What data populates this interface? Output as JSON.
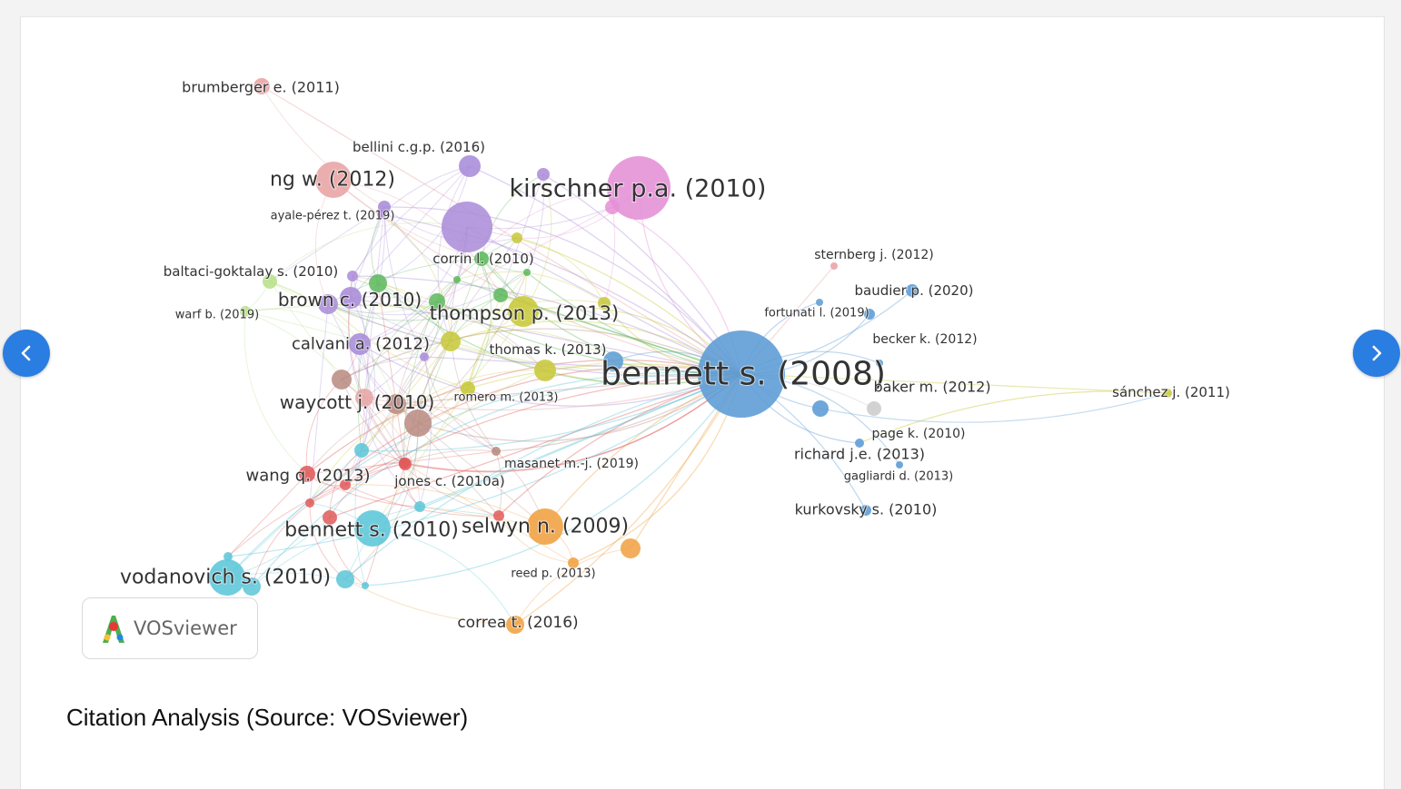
{
  "caption": "Citation Analysis (Source: VOSviewer)",
  "badge": {
    "brand": "VOSviewer",
    "icon": "vosviewer-logo-icon"
  },
  "navigation": {
    "prev_icon": "chevron-left-icon",
    "next_icon": "chevron-right-icon",
    "accent": "#2a7de1"
  },
  "network": {
    "cluster_colors": {
      "red": "#e05a5a",
      "green": "#5cb85c",
      "blue": "#5b9bd5",
      "yellow": "#c8c83a",
      "purple": "#a98bd8",
      "cyan": "#5bc6d8",
      "orange": "#f0a040",
      "pink": "#e58fd6",
      "salmon": "#e8a3a3",
      "brown": "#b98a80",
      "lightgray": "#cccccc",
      "lightgreen": "#b7e08a"
    },
    "items": [
      {
        "id": "bennett2008",
        "label": "bennett s. (2008)",
        "cluster": "blue"
      },
      {
        "id": "kirschner",
        "label": "kirschner p.a. (2010)",
        "cluster": "pink"
      },
      {
        "id": "ng",
        "label": "ng w. (2012)",
        "cluster": "salmon"
      },
      {
        "id": "brumberger",
        "label": "brumberger e. (2011)",
        "cluster": "salmon"
      },
      {
        "id": "bellini",
        "label": "bellini c.g.p. (2016)",
        "cluster": "purple"
      },
      {
        "id": "ayale",
        "label": "ayale-pérez t. (2019)",
        "cluster": "purple"
      },
      {
        "id": "corrin",
        "label": "corrin l. (2010)",
        "cluster": "green"
      },
      {
        "id": "baltaci",
        "label": "baltaci-goktalay s. (2010)",
        "cluster": "lightgreen"
      },
      {
        "id": "brown",
        "label": "brown c. (2010)",
        "cluster": "purple"
      },
      {
        "id": "warf",
        "label": "warf b. (2019)",
        "cluster": "lightgreen"
      },
      {
        "id": "thompson",
        "label": "thompson p. (2013)",
        "cluster": "yellow"
      },
      {
        "id": "calvani",
        "label": "calvani a. (2012)",
        "cluster": "purple"
      },
      {
        "id": "thomas",
        "label": "thomas k. (2013)",
        "cluster": "yellow"
      },
      {
        "id": "waycott",
        "label": "waycott j. (2010)",
        "cluster": "brown"
      },
      {
        "id": "romero",
        "label": "romero m. (2013)",
        "cluster": "yellow"
      },
      {
        "id": "wang",
        "label": "wang q. (2013)",
        "cluster": "red"
      },
      {
        "id": "jones",
        "label": "jones c. (2010a)",
        "cluster": "red"
      },
      {
        "id": "masanet",
        "label": "masanet m.-j. (2019)",
        "cluster": "brown"
      },
      {
        "id": "bennett2010",
        "label": "bennett s. (2010)",
        "cluster": "cyan"
      },
      {
        "id": "selwyn",
        "label": "selwyn n. (2009)",
        "cluster": "orange"
      },
      {
        "id": "vodanovich",
        "label": "vodanovich s. (2010)",
        "cluster": "cyan"
      },
      {
        "id": "reed",
        "label": "reed p. (2013)",
        "cluster": "orange"
      },
      {
        "id": "correa",
        "label": "correa t. (2016)",
        "cluster": "orange"
      },
      {
        "id": "sternberg",
        "label": "sternberg j. (2012)",
        "cluster": "salmon"
      },
      {
        "id": "baudier",
        "label": "baudier p. (2020)",
        "cluster": "blue"
      },
      {
        "id": "fortunati",
        "label": "fortunati l. (2019)",
        "cluster": "blue"
      },
      {
        "id": "becker",
        "label": "becker k. (2012)",
        "cluster": "blue"
      },
      {
        "id": "baker",
        "label": "baker m. (2012)",
        "cluster": "lightgray"
      },
      {
        "id": "sanchez",
        "label": "sánchez j. (2011)",
        "cluster": "yellow"
      },
      {
        "id": "page",
        "label": "page k. (2010)",
        "cluster": "blue"
      },
      {
        "id": "richard",
        "label": "richard j.e. (2013)",
        "cluster": "blue"
      },
      {
        "id": "gagliardi",
        "label": "gagliardi d. (2013)",
        "cluster": "blue"
      },
      {
        "id": "kurkovsky",
        "label": "kurkovsky s. (2010)",
        "cluster": "blue"
      }
    ]
  }
}
